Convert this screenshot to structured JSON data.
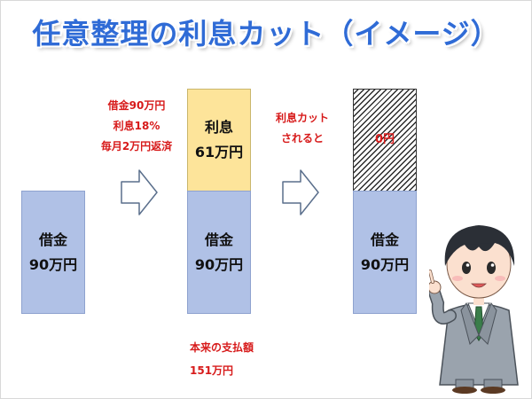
{
  "title": "任意整理の利息カット（イメージ）",
  "stage1": {
    "line1": "借金",
    "line2": "90万円"
  },
  "stage1_note": {
    "line1": "借金90万円",
    "line2": "利息18%",
    "line3": "毎月2万円返済"
  },
  "stage2": {
    "interest_line1": "利息",
    "interest_line2": "61万円",
    "debt_line1": "借金",
    "debt_line2": "90万円"
  },
  "stage2_note": {
    "line1": "本来の支払額",
    "line2": "151万円"
  },
  "stage3_note": {
    "line1": "利息カット",
    "line2": "されると"
  },
  "stage3": {
    "interest_value": "0円",
    "debt_line1": "借金",
    "debt_line2": "90万円"
  },
  "colors": {
    "debt_box": "#b0c1e6",
    "interest_box": "#fde49a",
    "note_text": "#d71a1a",
    "title": "#2f6bd6"
  },
  "icons": {
    "arrow": "right-arrow-icon",
    "character": "businessman-pointing-illustration"
  }
}
